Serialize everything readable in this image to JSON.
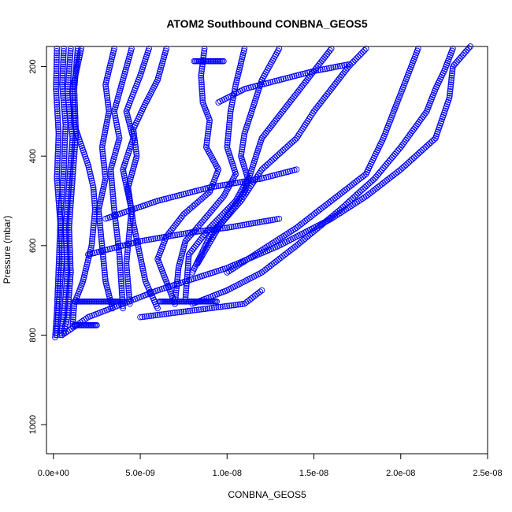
{
  "chart_data": {
    "type": "scatter",
    "title": "ATOM2 Southbound CONBNA_GEOS5",
    "xlabel": "CONBNA_GEOS5",
    "ylabel": "Pressure (mbar)",
    "xlim": [
      -4e-10,
      2.5e-08
    ],
    "ylim": [
      1065,
      155
    ],
    "y_inverted": true,
    "grid": false,
    "legend": "none",
    "marker": "open-circle",
    "color": "#0000ff",
    "x_ticks": [
      {
        "value": 0,
        "label": "0.0e+00"
      },
      {
        "value": 5e-09,
        "label": "5.0e-09"
      },
      {
        "value": 1e-08,
        "label": "1.0e-08"
      },
      {
        "value": 1.5e-08,
        "label": "1.5e-08"
      },
      {
        "value": 2e-08,
        "label": "2.0e-08"
      },
      {
        "value": 2.5e-08,
        "label": "2.5e-08"
      }
    ],
    "y_ticks": [
      {
        "value": 200,
        "label": "200"
      },
      {
        "value": 400,
        "label": "400"
      },
      {
        "value": 600,
        "label": "600"
      },
      {
        "value": 800,
        "label": "800"
      },
      {
        "value": 1000,
        "label": "1000"
      }
    ],
    "profiles": [
      {
        "x": [
          2e-10,
          1.5e-10,
          3e-10,
          2e-10,
          4e-10,
          3e-10,
          2e-10,
          1e-10
        ],
        "y": [
          160,
          250,
          350,
          450,
          550,
          650,
          750,
          805
        ]
      },
      {
        "x": [
          6e-10,
          5e-10,
          7e-10,
          6e-10,
          4e-10,
          5e-10,
          3e-10,
          2e-10
        ],
        "y": [
          160,
          240,
          330,
          430,
          530,
          630,
          730,
          800
        ]
      },
      {
        "x": [
          1e-09,
          8e-10,
          1.1e-09,
          9e-10,
          7e-10,
          8e-10,
          6e-10,
          4e-10
        ],
        "y": [
          160,
          260,
          360,
          460,
          560,
          660,
          760,
          800
        ]
      },
      {
        "x": [
          1.4e-09,
          1.2e-09,
          1.3e-09,
          1.1e-09,
          9e-10,
          1e-09,
          8e-10,
          6e-10
        ],
        "y": [
          160,
          250,
          350,
          450,
          560,
          660,
          760,
          795
        ]
      },
      {
        "x": [
          1.6e-09,
          1.1e-09,
          1.2e-09,
          2e-09,
          2.3e-09,
          2.4e-09,
          2.2e-09,
          1.7e-09,
          1.2e-09,
          1.1e-09
        ],
        "y": [
          160,
          250,
          330,
          420,
          470,
          520,
          600,
          680,
          730,
          780
        ]
      },
      {
        "x": [
          3.5e-09,
          3e-09,
          3.2e-09,
          2.8e-09,
          3e-09,
          2.6e-09,
          2.8e-09,
          3e-09,
          3.4e-09
        ],
        "y": [
          160,
          240,
          300,
          380,
          450,
          520,
          600,
          680,
          740
        ]
      },
      {
        "x": [
          4.5e-09,
          4e-09,
          3.5e-09,
          3.8e-09,
          3.3e-09,
          3.5e-09,
          3.8e-09,
          4e-09
        ],
        "y": [
          160,
          230,
          300,
          360,
          430,
          520,
          620,
          740
        ]
      },
      {
        "x": [
          5.5e-09,
          5e-09,
          4.2e-09,
          4.6e-09,
          4e-09,
          4.5e-09,
          4.2e-09,
          4.4e-09
        ],
        "y": [
          160,
          220,
          300,
          360,
          430,
          520,
          640,
          730
        ]
      },
      {
        "x": [
          6.5e-09,
          6e-09,
          5.2e-09,
          4.6e-09,
          4.8e-09,
          4.3e-09,
          4.6e-09,
          5.3e-09,
          6e-09
        ],
        "y": [
          160,
          230,
          290,
          340,
          400,
          470,
          550,
          680,
          740
        ]
      },
      {
        "x": [
          8.7e-09,
          8.5e-09,
          8.6e-09,
          9e-09,
          8.8e-09,
          9.5e-09,
          9e-09,
          7.5e-09,
          6.5e-09,
          6e-09,
          6.5e-09,
          7e-09
        ],
        "y": [
          160,
          220,
          280,
          320,
          380,
          430,
          480,
          530,
          580,
          630,
          680,
          730
        ]
      },
      {
        "x": [
          1.1e-08,
          1.05e-08,
          1.02e-08,
          1e-08,
          1.05e-08,
          9.8e-09,
          8.5e-09,
          7.6e-09,
          7.2e-09,
          7e-09
        ],
        "y": [
          160,
          240,
          300,
          380,
          440,
          490,
          550,
          590,
          650,
          730
        ]
      },
      {
        "x": [
          1.3e-08,
          1.2e-08,
          1.15e-08,
          1.1e-08,
          1.08e-08,
          1.12e-08,
          1.05e-08,
          9e-09,
          7.8e-09,
          7.6e-09
        ],
        "y": [
          160,
          230,
          290,
          350,
          400,
          450,
          500,
          560,
          620,
          720
        ]
      },
      {
        "x": [
          1.6e-08,
          1.5e-08,
          1.4e-08,
          1.3e-08,
          1.2e-08,
          1.15e-08,
          1.1e-08,
          9.5e-09,
          8.3e-09
        ],
        "y": [
          160,
          210,
          260,
          310,
          360,
          420,
          480,
          560,
          640
        ]
      },
      {
        "x": [
          1.8e-08,
          1.7e-08,
          1.6e-08,
          1.5e-08,
          1.4e-08,
          1.2e-08,
          1.08e-08,
          9e-09,
          8e-09
        ],
        "y": [
          160,
          200,
          250,
          300,
          360,
          430,
          500,
          580,
          660
        ]
      },
      {
        "x": [
          2.1e-08,
          2.05e-08,
          2e-08,
          1.96e-08,
          1.9e-08,
          1.8e-08,
          1.6e-08,
          1.4e-08,
          1.2e-08,
          1e-08
        ],
        "y": [
          160,
          210,
          260,
          300,
          360,
          440,
          500,
          560,
          610,
          660
        ]
      },
      {
        "x": [
          2.3e-08,
          2.25e-08,
          2.2e-08,
          2.15e-08,
          2e-08,
          1.85e-08,
          1.65e-08,
          1.4e-08,
          1.2e-08,
          1e-08,
          8e-09
        ],
        "y": [
          160,
          210,
          250,
          300,
          380,
          450,
          520,
          600,
          660,
          700,
          730
        ]
      },
      {
        "x": [
          2.4e-08,
          2.3e-08,
          2.28e-08,
          2.2e-08,
          2e-08,
          1.8e-08,
          1.6e-08,
          1.3e-08,
          1e-08,
          6e-09,
          2e-09,
          5e-10
        ],
        "y": [
          155,
          200,
          270,
          360,
          430,
          490,
          540,
          600,
          650,
          700,
          760,
          800
        ]
      },
      {
        "x": [
          9.5e-09,
          1.1e-08,
          1.3e-08,
          1.5e-08,
          1.7e-08
        ],
        "y": [
          280,
          250,
          230,
          210,
          195
        ]
      },
      {
        "x": [
          3e-09,
          6e-09,
          9e-09,
          1.2e-08,
          1.4e-08
        ],
        "y": [
          540,
          500,
          470,
          450,
          430
        ]
      },
      {
        "x": [
          2e-09,
          5e-09,
          8e-09,
          1e-08,
          1.3e-08
        ],
        "y": [
          620,
          590,
          570,
          560,
          540
        ]
      },
      {
        "x": [
          5e-09,
          7e-09,
          9e-09,
          1.1e-08,
          1.2e-08
        ],
        "y": [
          760,
          750,
          740,
          730,
          700
        ]
      }
    ],
    "horizontal_runs": [
      {
        "x": [
          1.2e-09,
          4.1e-09
        ],
        "y": 725
      },
      {
        "x": [
          6.1e-09,
          9.4e-09
        ],
        "y": 725
      },
      {
        "x": [
          8.1e-09,
          9.8e-09
        ],
        "y": 188
      },
      {
        "x": [
          1.2e-09,
          2.5e-09
        ],
        "y": 778
      }
    ]
  }
}
